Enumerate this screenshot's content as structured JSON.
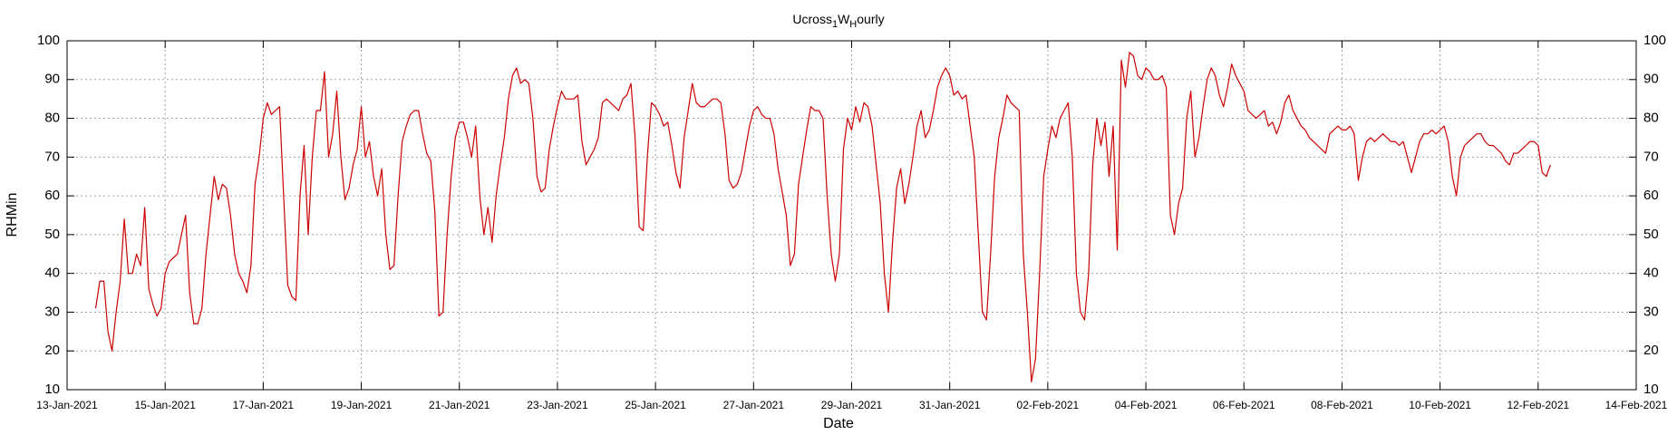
{
  "chart_data": {
    "type": "line",
    "title": [
      {
        "text": "Ucross"
      },
      {
        "text": "1",
        "sub": true
      },
      {
        "text": "W"
      },
      {
        "text": "H",
        "sub": true
      },
      {
        "text": "ourly"
      }
    ],
    "xlabel": "Date",
    "ylabel": "RHMin",
    "grid": true,
    "ylim": [
      10,
      100
    ],
    "yticks": [
      10,
      20,
      30,
      40,
      50,
      60,
      70,
      80,
      90,
      100
    ],
    "right_axis_ticks": true,
    "xlim": [
      "2021-01-13 00:00",
      "2021-02-14 00:00"
    ],
    "xticks": [
      {
        "value": "2021-01-13 00:00",
        "label": "13-Jan-2021"
      },
      {
        "value": "2021-01-15 00:00",
        "label": "15-Jan-2021"
      },
      {
        "value": "2021-01-17 00:00",
        "label": "17-Jan-2021"
      },
      {
        "value": "2021-01-19 00:00",
        "label": "19-Jan-2021"
      },
      {
        "value": "2021-01-21 00:00",
        "label": "21-Jan-2021"
      },
      {
        "value": "2021-01-23 00:00",
        "label": "23-Jan-2021"
      },
      {
        "value": "2021-01-25 00:00",
        "label": "25-Jan-2021"
      },
      {
        "value": "2021-01-27 00:00",
        "label": "27-Jan-2021"
      },
      {
        "value": "2021-01-29 00:00",
        "label": "29-Jan-2021"
      },
      {
        "value": "2021-01-31 00:00",
        "label": "31-Jan-2021"
      },
      {
        "value": "2021-02-02 00:00",
        "label": "02-Feb-2021"
      },
      {
        "value": "2021-02-04 00:00",
        "label": "04-Feb-2021"
      },
      {
        "value": "2021-02-06 00:00",
        "label": "06-Feb-2021"
      },
      {
        "value": "2021-02-08 00:00",
        "label": "08-Feb-2021"
      },
      {
        "value": "2021-02-10 00:00",
        "label": "10-Feb-2021"
      },
      {
        "value": "2021-02-12 00:00",
        "label": "12-Feb-2021"
      },
      {
        "value": "2021-02-14 00:00",
        "label": "14-Feb-2021"
      }
    ],
    "x": [
      "2021-01-13 14:00",
      "2021-01-13 16:00",
      "2021-01-13 18:00",
      "2021-01-13 20:00",
      "2021-01-13 22:00",
      "2021-01-14 00:00",
      "2021-01-14 02:00",
      "2021-01-14 04:00",
      "2021-01-14 06:00",
      "2021-01-14 08:00",
      "2021-01-14 10:00",
      "2021-01-14 12:00",
      "2021-01-14 14:00",
      "2021-01-14 16:00",
      "2021-01-14 18:00",
      "2021-01-14 20:00",
      "2021-01-14 22:00",
      "2021-01-15 00:00",
      "2021-01-15 02:00",
      "2021-01-15 04:00",
      "2021-01-15 06:00",
      "2021-01-15 08:00",
      "2021-01-15 10:00",
      "2021-01-15 12:00",
      "2021-01-15 14:00",
      "2021-01-15 16:00",
      "2021-01-15 18:00",
      "2021-01-15 20:00",
      "2021-01-15 22:00",
      "2021-01-16 00:00",
      "2021-01-16 02:00",
      "2021-01-16 04:00",
      "2021-01-16 06:00",
      "2021-01-16 08:00",
      "2021-01-16 10:00",
      "2021-01-16 12:00",
      "2021-01-16 14:00",
      "2021-01-16 16:00",
      "2021-01-16 18:00",
      "2021-01-16 20:00",
      "2021-01-16 22:00",
      "2021-01-17 00:00",
      "2021-01-17 02:00",
      "2021-01-17 04:00",
      "2021-01-17 06:00",
      "2021-01-17 08:00",
      "2021-01-17 10:00",
      "2021-01-17 12:00",
      "2021-01-17 14:00",
      "2021-01-17 16:00",
      "2021-01-17 18:00",
      "2021-01-17 20:00",
      "2021-01-17 22:00",
      "2021-01-18 00:00",
      "2021-01-18 02:00",
      "2021-01-18 04:00",
      "2021-01-18 06:00",
      "2021-01-18 08:00",
      "2021-01-18 10:00",
      "2021-01-18 12:00",
      "2021-01-18 14:00",
      "2021-01-18 16:00",
      "2021-01-18 18:00",
      "2021-01-18 20:00",
      "2021-01-18 22:00",
      "2021-01-19 00:00",
      "2021-01-19 02:00",
      "2021-01-19 04:00",
      "2021-01-19 06:00",
      "2021-01-19 08:00",
      "2021-01-19 10:00",
      "2021-01-19 12:00",
      "2021-01-19 14:00",
      "2021-01-19 16:00",
      "2021-01-19 18:00",
      "2021-01-19 20:00",
      "2021-01-19 22:00",
      "2021-01-20 00:00",
      "2021-01-20 02:00",
      "2021-01-20 04:00",
      "2021-01-20 06:00",
      "2021-01-20 08:00",
      "2021-01-20 10:00",
      "2021-01-20 12:00",
      "2021-01-20 14:00",
      "2021-01-20 16:00",
      "2021-01-20 18:00",
      "2021-01-20 20:00",
      "2021-01-20 22:00",
      "2021-01-21 00:00",
      "2021-01-21 02:00",
      "2021-01-21 04:00",
      "2021-01-21 06:00",
      "2021-01-21 08:00",
      "2021-01-21 10:00",
      "2021-01-21 12:00",
      "2021-01-21 14:00",
      "2021-01-21 16:00",
      "2021-01-21 18:00",
      "2021-01-21 20:00",
      "2021-01-21 22:00",
      "2021-01-22 00:00",
      "2021-01-22 02:00",
      "2021-01-22 04:00",
      "2021-01-22 06:00",
      "2021-01-22 08:00",
      "2021-01-22 10:00",
      "2021-01-22 12:00",
      "2021-01-22 14:00",
      "2021-01-22 16:00",
      "2021-01-22 18:00",
      "2021-01-22 20:00",
      "2021-01-22 22:00",
      "2021-01-23 00:00",
      "2021-01-23 02:00",
      "2021-01-23 04:00",
      "2021-01-23 06:00",
      "2021-01-23 08:00",
      "2021-01-23 10:00",
      "2021-01-23 12:00",
      "2021-01-23 14:00",
      "2021-01-23 16:00",
      "2021-01-23 18:00",
      "2021-01-23 20:00",
      "2021-01-23 22:00",
      "2021-01-24 00:00",
      "2021-01-24 02:00",
      "2021-01-24 04:00",
      "2021-01-24 06:00",
      "2021-01-24 08:00",
      "2021-01-24 10:00",
      "2021-01-24 12:00",
      "2021-01-24 14:00",
      "2021-01-24 16:00",
      "2021-01-24 18:00",
      "2021-01-24 20:00",
      "2021-01-24 22:00",
      "2021-01-25 00:00",
      "2021-01-25 02:00",
      "2021-01-25 04:00",
      "2021-01-25 06:00",
      "2021-01-25 08:00",
      "2021-01-25 10:00",
      "2021-01-25 12:00",
      "2021-01-25 14:00",
      "2021-01-25 16:00",
      "2021-01-25 18:00",
      "2021-01-25 20:00",
      "2021-01-25 22:00",
      "2021-01-26 00:00",
      "2021-01-26 02:00",
      "2021-01-26 04:00",
      "2021-01-26 06:00",
      "2021-01-26 08:00",
      "2021-01-26 10:00",
      "2021-01-26 12:00",
      "2021-01-26 14:00",
      "2021-01-26 16:00",
      "2021-01-26 18:00",
      "2021-01-26 20:00",
      "2021-01-26 22:00",
      "2021-01-27 00:00",
      "2021-01-27 02:00",
      "2021-01-27 04:00",
      "2021-01-27 06:00",
      "2021-01-27 08:00",
      "2021-01-27 10:00",
      "2021-01-27 12:00",
      "2021-01-27 14:00",
      "2021-01-27 16:00",
      "2021-01-27 18:00",
      "2021-01-27 20:00",
      "2021-01-27 22:00",
      "2021-01-28 00:00",
      "2021-01-28 02:00",
      "2021-01-28 04:00",
      "2021-01-28 06:00",
      "2021-01-28 08:00",
      "2021-01-28 10:00",
      "2021-01-28 12:00",
      "2021-01-28 14:00",
      "2021-01-28 16:00",
      "2021-01-28 18:00",
      "2021-01-28 20:00",
      "2021-01-28 22:00",
      "2021-01-29 00:00",
      "2021-01-29 02:00",
      "2021-01-29 04:00",
      "2021-01-29 06:00",
      "2021-01-29 08:00",
      "2021-01-29 10:00",
      "2021-01-29 12:00",
      "2021-01-29 14:00",
      "2021-01-29 16:00",
      "2021-01-29 18:00",
      "2021-01-29 20:00",
      "2021-01-29 22:00",
      "2021-01-30 00:00",
      "2021-01-30 02:00",
      "2021-01-30 04:00",
      "2021-01-30 06:00",
      "2021-01-30 08:00",
      "2021-01-30 10:00",
      "2021-01-30 12:00",
      "2021-01-30 14:00",
      "2021-01-30 16:00",
      "2021-01-30 18:00",
      "2021-01-30 20:00",
      "2021-01-30 22:00",
      "2021-01-31 00:00",
      "2021-01-31 02:00",
      "2021-01-31 04:00",
      "2021-01-31 06:00",
      "2021-01-31 08:00",
      "2021-01-31 10:00",
      "2021-01-31 12:00",
      "2021-01-31 14:00",
      "2021-01-31 16:00",
      "2021-01-31 18:00",
      "2021-01-31 20:00",
      "2021-01-31 22:00",
      "2021-02-01 00:00",
      "2021-02-01 02:00",
      "2021-02-01 04:00",
      "2021-02-01 06:00",
      "2021-02-01 08:00",
      "2021-02-01 10:00",
      "2021-02-01 12:00",
      "2021-02-01 14:00",
      "2021-02-01 16:00",
      "2021-02-01 18:00",
      "2021-02-01 20:00",
      "2021-02-01 22:00",
      "2021-02-02 00:00",
      "2021-02-02 02:00",
      "2021-02-02 04:00",
      "2021-02-02 06:00",
      "2021-02-02 08:00",
      "2021-02-02 10:00",
      "2021-02-02 12:00",
      "2021-02-02 14:00",
      "2021-02-02 16:00",
      "2021-02-02 18:00",
      "2021-02-02 20:00",
      "2021-02-02 22:00",
      "2021-02-03 00:00",
      "2021-02-03 02:00",
      "2021-02-03 04:00",
      "2021-02-03 06:00",
      "2021-02-03 08:00",
      "2021-02-03 10:00",
      "2021-02-03 12:00",
      "2021-02-03 14:00",
      "2021-02-03 16:00",
      "2021-02-03 18:00",
      "2021-02-03 20:00",
      "2021-02-03 22:00",
      "2021-02-04 00:00",
      "2021-02-04 02:00",
      "2021-02-04 04:00",
      "2021-02-04 06:00",
      "2021-02-04 08:00",
      "2021-02-04 10:00",
      "2021-02-04 12:00",
      "2021-02-04 14:00",
      "2021-02-04 16:00",
      "2021-02-04 18:00",
      "2021-02-04 20:00",
      "2021-02-04 22:00",
      "2021-02-05 00:00",
      "2021-02-05 02:00",
      "2021-02-05 04:00",
      "2021-02-05 06:00",
      "2021-02-05 08:00",
      "2021-02-05 10:00",
      "2021-02-05 12:00",
      "2021-02-05 14:00",
      "2021-02-05 16:00",
      "2021-02-05 18:00",
      "2021-02-05 20:00",
      "2021-02-05 22:00",
      "2021-02-06 00:00",
      "2021-02-06 02:00",
      "2021-02-06 04:00",
      "2021-02-06 06:00",
      "2021-02-06 08:00",
      "2021-02-06 10:00",
      "2021-02-06 12:00",
      "2021-02-06 14:00",
      "2021-02-06 16:00",
      "2021-02-06 18:00",
      "2021-02-06 20:00",
      "2021-02-06 22:00",
      "2021-02-07 00:00",
      "2021-02-07 02:00",
      "2021-02-07 04:00",
      "2021-02-07 06:00",
      "2021-02-07 08:00",
      "2021-02-07 10:00",
      "2021-02-07 12:00",
      "2021-02-07 14:00",
      "2021-02-07 16:00",
      "2021-02-07 18:00",
      "2021-02-07 20:00",
      "2021-02-07 22:00",
      "2021-02-08 00:00",
      "2021-02-08 02:00",
      "2021-02-08 04:00",
      "2021-02-08 06:00",
      "2021-02-08 08:00",
      "2021-02-08 10:00",
      "2021-02-08 12:00",
      "2021-02-08 14:00",
      "2021-02-08 16:00",
      "2021-02-08 18:00",
      "2021-02-08 20:00",
      "2021-02-08 22:00",
      "2021-02-09 00:00",
      "2021-02-09 02:00",
      "2021-02-09 04:00",
      "2021-02-09 06:00",
      "2021-02-09 08:00",
      "2021-02-09 10:00",
      "2021-02-09 12:00",
      "2021-02-09 14:00",
      "2021-02-09 16:00",
      "2021-02-09 18:00",
      "2021-02-09 20:00",
      "2021-02-09 22:00",
      "2021-02-10 00:00",
      "2021-02-10 02:00",
      "2021-02-10 04:00",
      "2021-02-10 06:00",
      "2021-02-10 08:00",
      "2021-02-10 10:00",
      "2021-02-10 12:00",
      "2021-02-10 14:00",
      "2021-02-10 16:00",
      "2021-02-10 18:00",
      "2021-02-10 20:00",
      "2021-02-10 22:00",
      "2021-02-11 00:00",
      "2021-02-11 02:00",
      "2021-02-11 04:00",
      "2021-02-11 06:00",
      "2021-02-11 08:00",
      "2021-02-11 10:00",
      "2021-02-11 12:00",
      "2021-02-11 14:00",
      "2021-02-11 16:00",
      "2021-02-11 18:00",
      "2021-02-11 20:00",
      "2021-02-11 22:00",
      "2021-02-12 00:00",
      "2021-02-12 02:00",
      "2021-02-12 04:00",
      "2021-02-12 06:00"
    ],
    "series": [
      {
        "name": "RHMin",
        "color": "#cc0000",
        "values": [
          31,
          38,
          38,
          25,
          20,
          30,
          38,
          54,
          40,
          40,
          45,
          42,
          57,
          36,
          32,
          29,
          31,
          40,
          43,
          44,
          45,
          50,
          55,
          35,
          27,
          27,
          31,
          45,
          55,
          65,
          59,
          63,
          62,
          55,
          45,
          40,
          38,
          35,
          42,
          63,
          70,
          80,
          84,
          81,
          82,
          83,
          60,
          37,
          34,
          33,
          60,
          73,
          50,
          70,
          82,
          82,
          92,
          70,
          76,
          87,
          70,
          59,
          62,
          68,
          72,
          83,
          70,
          74,
          65,
          60,
          67,
          50,
          41,
          42,
          60,
          74,
          78,
          81,
          82,
          82,
          76,
          71,
          69,
          56,
          29,
          30,
          50,
          65,
          75,
          79,
          79,
          75,
          70,
          78,
          60,
          50,
          57,
          48,
          60,
          68,
          75,
          85,
          91,
          93,
          89,
          90,
          89,
          80,
          65,
          61,
          62,
          72,
          78,
          83,
          87,
          85,
          85,
          85,
          86,
          74,
          68,
          70,
          72,
          75,
          84,
          85,
          84,
          83,
          82,
          85,
          86,
          89,
          75,
          52,
          51,
          70,
          84,
          83,
          81,
          78,
          79,
          73,
          66,
          62,
          75,
          82,
          89,
          84,
          83,
          83,
          84,
          85,
          85,
          84,
          76,
          64,
          62,
          63,
          66,
          72,
          78,
          82,
          83,
          81,
          80,
          80,
          76,
          67,
          61,
          55,
          42,
          45,
          63,
          70,
          77,
          83,
          82,
          82,
          80,
          60,
          45,
          38,
          45,
          72,
          80,
          77,
          83,
          79,
          84,
          83,
          78,
          68,
          58,
          40,
          30,
          48,
          62,
          67,
          58,
          63,
          70,
          78,
          82,
          75,
          77,
          82,
          88,
          91,
          93,
          91,
          86,
          87,
          85,
          86,
          78,
          70,
          50,
          30,
          28,
          45,
          65,
          75,
          80,
          86,
          84,
          83,
          82,
          45,
          30,
          12,
          18,
          40,
          65,
          72,
          78,
          75,
          80,
          82,
          84,
          70,
          40,
          30,
          28,
          40,
          68,
          80,
          73,
          79,
          65,
          78,
          46,
          95,
          88,
          97,
          96,
          91,
          90,
          93,
          92,
          90,
          90,
          91,
          88,
          55,
          50,
          58,
          62,
          80,
          87,
          70,
          75,
          83,
          90,
          93,
          91,
          86,
          83,
          88,
          94,
          91,
          89,
          87,
          82,
          81,
          80,
          81,
          82,
          78,
          79,
          76,
          79,
          84,
          86,
          82,
          80,
          78,
          77,
          75,
          74,
          73,
          72,
          71,
          76,
          77,
          78,
          77,
          77,
          78,
          76,
          64,
          70,
          74,
          75,
          74,
          75,
          76,
          75,
          74,
          74,
          73,
          74,
          70,
          66,
          70,
          74,
          76,
          76,
          77,
          76,
          77,
          78,
          74,
          65,
          60,
          70,
          73,
          74,
          75,
          76,
          76,
          74,
          73,
          73,
          72,
          71,
          69,
          68,
          71,
          71,
          72,
          73,
          74,
          74,
          73,
          66,
          65,
          68
        ]
      }
    ]
  }
}
